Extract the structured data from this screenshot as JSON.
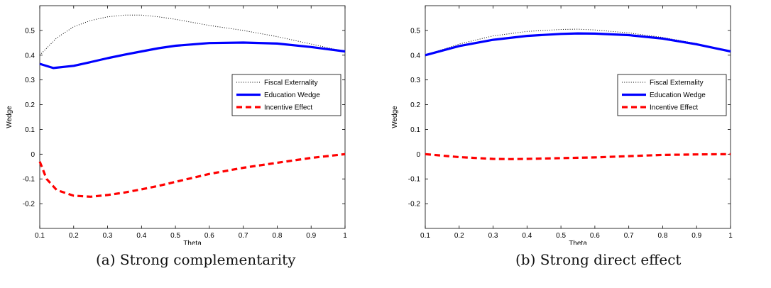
{
  "figures": [
    {
      "caption": "(a) Strong complementarity",
      "chart_data": {
        "type": "line",
        "title": "",
        "xlabel": "Theta",
        "ylabel": "Wedge",
        "xlim": [
          0.1,
          1
        ],
        "ylim": [
          -0.3,
          0.6
        ],
        "xticks": [
          0.1,
          0.2,
          0.3,
          0.4,
          0.5,
          0.6,
          0.7,
          0.8,
          0.9,
          1
        ],
        "xtick_labels": [
          "0.1",
          "0.2",
          "0.3",
          "0.4",
          "0.5",
          "0.6",
          "0.7",
          "0.8",
          "0.9",
          "1"
        ],
        "yticks": [
          -0.2,
          -0.1,
          0,
          0.1,
          0.2,
          0.3,
          0.4,
          0.5
        ],
        "ytick_labels": [
          "-0.2",
          "-0.1",
          "0",
          "0.1",
          "0.2",
          "0.3",
          "0.4",
          "0.5"
        ],
        "grid": false,
        "legend_position": "right",
        "series": [
          {
            "name": "Fiscal Externality",
            "color": "#000000",
            "style": "dotted",
            "x": [
              0.1,
              0.15,
              0.2,
              0.25,
              0.3,
              0.35,
              0.4,
              0.45,
              0.5,
              0.6,
              0.7,
              0.8,
              0.9,
              1.0
            ],
            "y": [
              0.4,
              0.47,
              0.515,
              0.54,
              0.555,
              0.562,
              0.562,
              0.555,
              0.545,
              0.52,
              0.5,
              0.475,
              0.445,
              0.415
            ]
          },
          {
            "name": "Education Wedge",
            "color": "#0000ff",
            "style": "solid",
            "x": [
              0.1,
              0.14,
              0.18,
              0.2,
              0.25,
              0.3,
              0.35,
              0.4,
              0.45,
              0.5,
              0.6,
              0.7,
              0.8,
              0.9,
              1.0
            ],
            "y": [
              0.365,
              0.348,
              0.354,
              0.357,
              0.372,
              0.388,
              0.402,
              0.415,
              0.428,
              0.438,
              0.449,
              0.451,
              0.447,
              0.433,
              0.415
            ]
          },
          {
            "name": "Incentive Effect",
            "color": "#ff0000",
            "style": "dashed",
            "x": [
              0.1,
              0.12,
              0.15,
              0.2,
              0.25,
              0.3,
              0.35,
              0.4,
              0.45,
              0.5,
              0.6,
              0.7,
              0.8,
              0.9,
              1.0
            ],
            "y": [
              -0.03,
              -0.1,
              -0.145,
              -0.168,
              -0.172,
              -0.165,
              -0.155,
              -0.142,
              -0.128,
              -0.112,
              -0.08,
              -0.055,
              -0.035,
              -0.015,
              0.0
            ]
          }
        ]
      }
    },
    {
      "caption": "(b) Strong direct effect",
      "chart_data": {
        "type": "line",
        "title": "",
        "xlabel": "Theta",
        "ylabel": "Wedge",
        "xlim": [
          0.1,
          1
        ],
        "ylim": [
          -0.3,
          0.6
        ],
        "xticks": [
          0.1,
          0.2,
          0.3,
          0.4,
          0.5,
          0.6,
          0.7,
          0.8,
          0.9,
          1
        ],
        "xtick_labels": [
          "0.1",
          "0.2",
          "0.3",
          "0.4",
          "0.5",
          "0.6",
          "0.7",
          "0.8",
          "0.9",
          "1"
        ],
        "yticks": [
          -0.2,
          -0.1,
          0,
          0.1,
          0.2,
          0.3,
          0.4,
          0.5
        ],
        "ytick_labels": [
          "-0.2",
          "-0.1",
          "0",
          "0.1",
          "0.2",
          "0.3",
          "0.4",
          "0.5"
        ],
        "grid": false,
        "legend_position": "right",
        "series": [
          {
            "name": "Fiscal Externality",
            "color": "#000000",
            "style": "dotted",
            "x": [
              0.1,
              0.2,
              0.3,
              0.4,
              0.5,
              0.55,
              0.6,
              0.7,
              0.8,
              0.9,
              1.0
            ],
            "y": [
              0.4,
              0.445,
              0.478,
              0.496,
              0.504,
              0.505,
              0.502,
              0.49,
              0.472,
              0.447,
              0.415
            ]
          },
          {
            "name": "Education Wedge",
            "color": "#0000ff",
            "style": "solid",
            "x": [
              0.1,
              0.2,
              0.3,
              0.4,
              0.5,
              0.55,
              0.6,
              0.7,
              0.8,
              0.9,
              1.0
            ],
            "y": [
              0.4,
              0.437,
              0.462,
              0.478,
              0.486,
              0.488,
              0.487,
              0.481,
              0.467,
              0.444,
              0.415
            ]
          },
          {
            "name": "Incentive Effect",
            "color": "#ff0000",
            "style": "dashed",
            "x": [
              0.1,
              0.2,
              0.3,
              0.35,
              0.4,
              0.5,
              0.6,
              0.7,
              0.8,
              0.9,
              1.0
            ],
            "y": [
              0.0,
              -0.012,
              -0.019,
              -0.02,
              -0.019,
              -0.016,
              -0.013,
              -0.008,
              -0.003,
              -0.001,
              0.0
            ]
          }
        ]
      }
    }
  ]
}
